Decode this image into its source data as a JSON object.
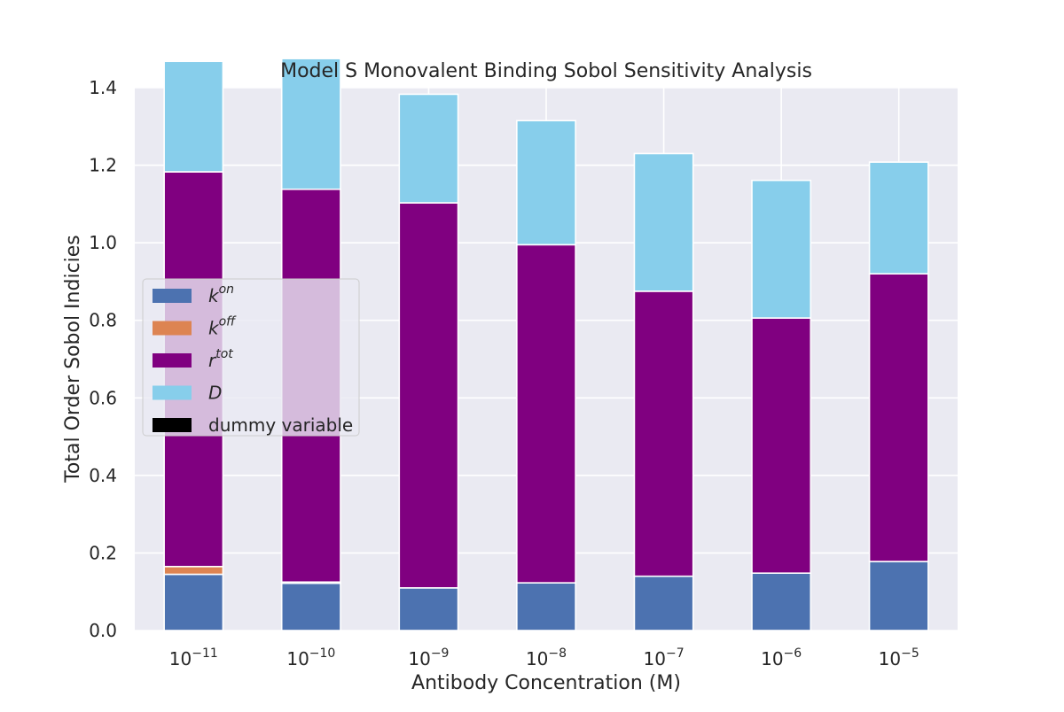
{
  "chart_data": {
    "type": "bar",
    "stacked": true,
    "title": "Model S Monovalent Binding Sobol Sensitivity Analysis",
    "xlabel": "Antibody Concentration (M)",
    "ylabel": "Total Order Sobol Indicies",
    "categories": [
      {
        "base": "10",
        "exp": "−11"
      },
      {
        "base": "10",
        "exp": "−10"
      },
      {
        "base": "10",
        "exp": "−9"
      },
      {
        "base": "10",
        "exp": "−8"
      },
      {
        "base": "10",
        "exp": "−7"
      },
      {
        "base": "10",
        "exp": "−6"
      },
      {
        "base": "10",
        "exp": "−5"
      }
    ],
    "ylim": [
      0,
      1.4
    ],
    "yticks": [
      "0.0",
      "0.2",
      "0.4",
      "0.6",
      "0.8",
      "1.0",
      "1.2",
      "1.4"
    ],
    "grid": true,
    "legend_position": "center-left",
    "series": [
      {
        "name": "k",
        "sup": "on",
        "italic": true,
        "color": "#4c72b0",
        "values": [
          0.145,
          0.122,
          0.11,
          0.123,
          0.14,
          0.148,
          0.178
        ]
      },
      {
        "name": "k",
        "sup": "off",
        "italic": true,
        "color": "#dd8452",
        "values": [
          0.02,
          0.003,
          0.0,
          0.0,
          0.0,
          0.0,
          0.0
        ]
      },
      {
        "name": "r",
        "sup": "tot",
        "italic": true,
        "color": "#800080",
        "values": [
          1.018,
          1.013,
          0.993,
          0.872,
          0.735,
          0.658,
          0.742
        ]
      },
      {
        "name": "D",
        "sup": "",
        "italic": true,
        "color": "#87ceeb",
        "values": [
          0.285,
          0.337,
          0.28,
          0.32,
          0.355,
          0.355,
          0.288
        ]
      },
      {
        "name": "dummy variable",
        "sup": "",
        "italic": false,
        "color": "#000000",
        "values": [
          0,
          0,
          0,
          0,
          0,
          0,
          0
        ]
      }
    ],
    "plot_background": "#eaeaf2",
    "grid_color": "#ffffff"
  }
}
